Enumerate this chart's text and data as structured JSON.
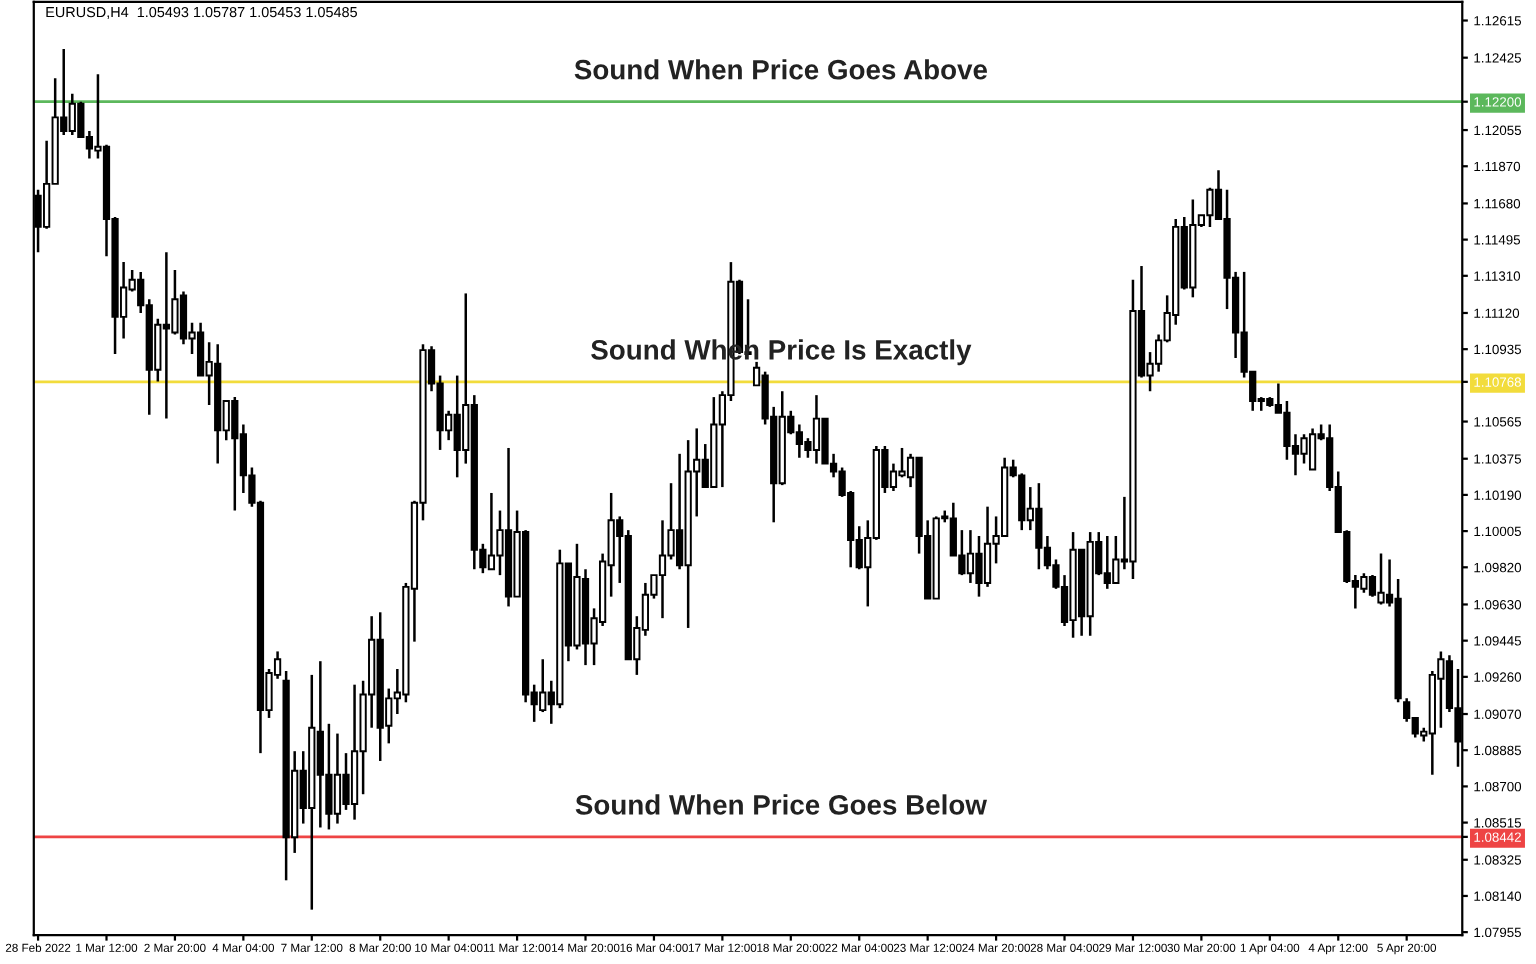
{
  "chart_data": {
    "type": "candlestick",
    "title": "EURUSD,H4  1.05493 1.05787 1.05453 1.05485",
    "categories": [
      "28 Feb 2022",
      null,
      null,
      null,
      null,
      null,
      null,
      null,
      "1 Mar 12:00",
      null,
      null,
      null,
      null,
      null,
      null,
      null,
      "2 Mar 20:00",
      null,
      null,
      null,
      null,
      null,
      null,
      null,
      "4 Mar 04:00",
      null,
      null,
      null,
      null,
      null,
      null,
      null,
      "7 Mar 12:00",
      null,
      null,
      null,
      null,
      null,
      null,
      null,
      "8 Mar 20:00",
      null,
      null,
      null,
      null,
      null,
      null,
      null,
      "10 Mar 04:00",
      null,
      null,
      null,
      null,
      null,
      null,
      null,
      "11 Mar 12:00",
      null,
      null,
      null,
      null,
      null,
      null,
      null,
      "14 Mar 20:00",
      null,
      null,
      null,
      null,
      null,
      null,
      null,
      "16 Mar 04:00",
      null,
      null,
      null,
      null,
      null,
      null,
      null,
      "17 Mar 12:00",
      null,
      null,
      null,
      null,
      null,
      null,
      null,
      "18 Mar 20:00",
      null,
      null,
      null,
      null,
      null,
      null,
      null,
      "22 Mar 04:00",
      null,
      null,
      null,
      null,
      null,
      null,
      null,
      "23 Mar 12:00",
      null,
      null,
      null,
      null,
      null,
      null,
      null,
      "24 Mar 20:00",
      null,
      null,
      null,
      null,
      null,
      null,
      null,
      "28 Mar 04:00",
      null,
      null,
      null,
      null,
      null,
      null,
      null,
      "29 Mar 12:00",
      null,
      null,
      null,
      null,
      null,
      null,
      null,
      "30 Mar 20:00",
      null,
      null,
      null,
      null,
      null,
      null,
      null,
      "1 Apr 04:00",
      null,
      null,
      null,
      null,
      null,
      null,
      null,
      "4 Apr 12:00",
      null,
      null,
      null,
      null,
      null,
      null,
      null,
      "5 Apr 20:00",
      null,
      null,
      null,
      null,
      null,
      null
    ],
    "ohlc": [
      [
        1.1172,
        1.1175,
        1.1143,
        1.1156
      ],
      [
        1.1156,
        1.12,
        1.1155,
        1.1178
      ],
      [
        1.1178,
        1.1232,
        1.1178,
        1.1212
      ],
      [
        1.1212,
        1.1247,
        1.1203,
        1.1205
      ],
      [
        1.1205,
        1.1224,
        1.1203,
        1.1219
      ],
      [
        1.1219,
        1.122,
        1.1202,
        1.1202
      ],
      [
        1.1202,
        1.1205,
        1.1191,
        1.1196
      ],
      [
        1.1195,
        1.1234,
        1.1191,
        1.1197
      ],
      [
        1.1197,
        1.1198,
        1.1141,
        1.116
      ],
      [
        1.116,
        1.1161,
        1.1091,
        1.111
      ],
      [
        1.111,
        1.1138,
        1.1099,
        1.1125
      ],
      [
        1.1124,
        1.1134,
        1.1123,
        1.1129
      ],
      [
        1.1129,
        1.1133,
        1.1112,
        1.1116
      ],
      [
        1.1116,
        1.1119,
        1.106,
        1.1083
      ],
      [
        1.1083,
        1.1109,
        1.1077,
        1.1106
      ],
      [
        1.1106,
        1.1143,
        1.1058,
        1.1104
      ],
      [
        1.1102,
        1.1134,
        1.1101,
        1.1119
      ],
      [
        1.1121,
        1.1123,
        1.1096,
        1.1099
      ],
      [
        1.1099,
        1.1107,
        1.1091,
        1.1102
      ],
      [
        1.1102,
        1.1107,
        1.108,
        1.108
      ],
      [
        1.108,
        1.1097,
        1.1065,
        1.1087
      ],
      [
        1.1086,
        1.1096,
        1.1035,
        1.1052
      ],
      [
        1.1052,
        1.1067,
        1.1047,
        1.1067
      ],
      [
        1.1067,
        1.1069,
        1.1011,
        1.1048
      ],
      [
        1.105,
        1.1055,
        1.102,
        1.1029
      ],
      [
        1.1029,
        1.1033,
        1.1013,
        1.1015
      ],
      [
        1.1015,
        1.1016,
        1.0887,
        1.0909
      ],
      [
        1.0909,
        1.093,
        1.0905,
        1.0928
      ],
      [
        1.0927,
        1.0939,
        1.0925,
        1.0935
      ],
      [
        1.0924,
        1.0929,
        1.0822,
        1.0844
      ],
      [
        1.0844,
        1.0888,
        1.0836,
        1.0878
      ],
      [
        1.0878,
        1.0888,
        1.0851,
        1.0859
      ],
      [
        1.0859,
        1.0927,
        1.0807,
        1.09
      ],
      [
        1.0898,
        1.0934,
        1.0849,
        1.0876
      ],
      [
        1.0876,
        1.0902,
        1.0848,
        1.0856
      ],
      [
        1.0856,
        1.0897,
        1.0851,
        1.0876
      ],
      [
        1.0876,
        1.0887,
        1.0858,
        1.0861
      ],
      [
        1.0861,
        1.0922,
        1.0853,
        1.0888
      ],
      [
        1.0888,
        1.0924,
        1.0866,
        1.0917
      ],
      [
        1.0917,
        1.0957,
        1.09,
        1.0945
      ],
      [
        1.0945,
        1.0959,
        1.0883,
        1.09
      ],
      [
        1.0901,
        1.092,
        1.0892,
        1.0915
      ],
      [
        1.0915,
        1.093,
        1.0907,
        1.0918
      ],
      [
        1.0917,
        1.0974,
        1.0913,
        1.0972
      ],
      [
        1.0971,
        1.1016,
        1.0944,
        1.1015
      ],
      [
        1.1015,
        1.1096,
        1.1006,
        1.1093
      ],
      [
        1.1093,
        1.1095,
        1.1072,
        1.1076
      ],
      [
        1.1076,
        1.108,
        1.1042,
        1.1052
      ],
      [
        1.1052,
        1.1062,
        1.1047,
        1.106
      ],
      [
        1.106,
        1.108,
        1.1028,
        1.1042
      ],
      [
        1.1042,
        1.1122,
        1.1035,
        1.1065
      ],
      [
        1.1065,
        1.107,
        1.0981,
        1.0991
      ],
      [
        1.0991,
        1.0994,
        1.0979,
        1.0982
      ],
      [
        1.0981,
        1.102,
        1.0981,
        1.0988
      ],
      [
        1.0988,
        1.1011,
        1.0978,
        1.1001
      ],
      [
        1.1001,
        1.1043,
        1.0962,
        1.0967
      ],
      [
        1.0967,
        1.1011,
        1.0967,
        1.1
      ],
      [
        1.1,
        1.1001,
        1.0913,
        1.0917
      ],
      [
        1.0918,
        1.0922,
        1.0903,
        1.0912
      ],
      [
        1.0909,
        1.0935,
        1.0908,
        1.0918
      ],
      [
        1.0918,
        1.0924,
        1.0902,
        1.0912
      ],
      [
        1.0912,
        1.0991,
        1.091,
        1.0984
      ],
      [
        1.0984,
        1.0984,
        1.0934,
        1.0942
      ],
      [
        1.0942,
        1.0994,
        1.094,
        1.0977
      ],
      [
        1.0976,
        1.0981,
        1.0932,
        1.0943
      ],
      [
        1.0943,
        1.0961,
        1.0932,
        1.0956
      ],
      [
        1.0954,
        1.0989,
        1.0952,
        1.0985
      ],
      [
        1.0983,
        1.102,
        1.0967,
        1.1006
      ],
      [
        1.1006,
        1.1008,
        1.0974,
        1.0998
      ],
      [
        1.0998,
        1.1001,
        1.0935,
        1.0935
      ],
      [
        1.0935,
        1.0957,
        1.0927,
        1.0951
      ],
      [
        1.095,
        1.0974,
        1.0947,
        1.0968
      ],
      [
        1.0968,
        1.0978,
        1.0966,
        1.0978
      ],
      [
        1.0978,
        1.1006,
        1.0956,
        1.0988
      ],
      [
        1.0988,
        1.1025,
        1.0986,
        1.1001
      ],
      [
        1.1001,
        1.104,
        1.0981,
        1.0983
      ],
      [
        1.0983,
        1.1047,
        1.0951,
        1.1031
      ],
      [
        1.1031,
        1.1053,
        1.1008,
        1.1037
      ],
      [
        1.1037,
        1.1045,
        1.1023,
        1.1023
      ],
      [
        1.1023,
        1.1069,
        1.1023,
        1.1055
      ],
      [
        1.1055,
        1.1072,
        1.1023,
        1.107
      ],
      [
        1.107,
        1.1138,
        1.1067,
        1.1128
      ],
      [
        1.1128,
        1.1129,
        1.1091,
        1.1092
      ],
      [
        1.1091,
        1.1119,
        1.1091,
        1.1092
      ],
      [
        1.1075,
        1.1087,
        1.1075,
        1.1084
      ],
      [
        1.108,
        1.1082,
        1.1055,
        1.1058
      ],
      [
        1.1059,
        1.1064,
        1.1005,
        1.1025
      ],
      [
        1.1025,
        1.1072,
        1.1024,
        1.1059
      ],
      [
        1.1059,
        1.1062,
        1.105,
        1.1051
      ],
      [
        1.1051,
        1.1055,
        1.1038,
        1.1045
      ],
      [
        1.1046,
        1.1048,
        1.1038,
        1.1042
      ],
      [
        1.1042,
        1.107,
        1.1035,
        1.1058
      ],
      [
        1.1058,
        1.1058,
        1.1035,
        1.1035
      ],
      [
        1.1035,
        1.104,
        1.1028,
        1.1031
      ],
      [
        1.1031,
        1.1033,
        1.1018,
        1.1019
      ],
      [
        1.102,
        1.1021,
        1.0982,
        1.0996
      ],
      [
        1.0996,
        1.1003,
        1.0981,
        1.0982
      ],
      [
        1.0982,
        1.1006,
        1.0962,
        1.0997
      ],
      [
        1.0997,
        1.1044,
        1.0996,
        1.1042
      ],
      [
        1.1042,
        1.1044,
        1.102,
        1.1023
      ],
      [
        1.1023,
        1.1035,
        1.1021,
        1.1031
      ],
      [
        1.1029,
        1.1043,
        1.1028,
        1.1031
      ],
      [
        1.1028,
        1.104,
        1.1023,
        1.1038
      ],
      [
        1.1038,
        1.1038,
        1.0989,
        1.0998
      ],
      [
        1.0998,
        1.1006,
        1.0966,
        1.0966
      ],
      [
        1.0966,
        1.1008,
        1.0966,
        1.1007
      ],
      [
        1.1008,
        1.1011,
        1.1005,
        1.1007
      ],
      [
        1.1007,
        1.1015,
        1.0988,
        1.0988
      ],
      [
        1.0988,
        1.1001,
        1.0978,
        1.0979
      ],
      [
        1.0979,
        1.1001,
        1.0974,
        1.0989
      ],
      [
        1.0989,
        1.0998,
        1.0967,
        1.0974
      ],
      [
        1.0974,
        1.1013,
        1.0972,
        1.0994
      ],
      [
        1.0994,
        1.1008,
        1.0984,
        1.0998
      ],
      [
        1.0998,
        1.1038,
        1.0998,
        1.1033
      ],
      [
        1.1033,
        1.1037,
        1.1028,
        1.1029
      ],
      [
        1.1029,
        1.103,
        1.1001,
        1.1006
      ],
      [
        1.1006,
        1.1023,
        1.1001,
        1.1012
      ],
      [
        1.1012,
        1.1025,
        1.0981,
        1.0992
      ],
      [
        1.0992,
        1.0998,
        1.0981,
        1.0983
      ],
      [
        1.0983,
        1.0986,
        1.0971,
        1.0972
      ],
      [
        1.0972,
        1.0978,
        1.0952,
        1.0954
      ],
      [
        1.0955,
        1.1,
        1.0946,
        1.0991
      ],
      [
        1.0991,
        1.0991,
        1.0947,
        1.0957
      ],
      [
        1.0957,
        1.1,
        1.0947,
        1.0995
      ],
      [
        1.0995,
        1.1,
        1.0978,
        1.0979
      ],
      [
        1.0979,
        1.0998,
        1.0971,
        1.0974
      ],
      [
        1.0974,
        1.0998,
        1.0974,
        1.0986
      ],
      [
        1.0985,
        1.1018,
        1.0981,
        1.0986
      ],
      [
        1.0985,
        1.1129,
        1.0976,
        1.1113
      ],
      [
        1.1113,
        1.1136,
        1.1079,
        1.108
      ],
      [
        1.108,
        1.1092,
        1.1072,
        1.1086
      ],
      [
        1.1086,
        1.1101,
        1.1082,
        1.1098
      ],
      [
        1.1098,
        1.1121,
        1.1097,
        1.1112
      ],
      [
        1.1111,
        1.116,
        1.1106,
        1.1156
      ],
      [
        1.1156,
        1.1161,
        1.1124,
        1.1125
      ],
      [
        1.1125,
        1.117,
        1.112,
        1.1157
      ],
      [
        1.1157,
        1.1162,
        1.1156,
        1.1162
      ],
      [
        1.1162,
        1.1176,
        1.1156,
        1.1175
      ],
      [
        1.1175,
        1.1185,
        1.116,
        1.116
      ],
      [
        1.116,
        1.1175,
        1.1114,
        1.113
      ],
      [
        1.113,
        1.1133,
        1.1089,
        1.1102
      ],
      [
        1.1102,
        1.1133,
        1.1079,
        1.1082
      ],
      [
        1.1082,
        1.1082,
        1.1062,
        1.1067
      ],
      [
        1.1068,
        1.1069,
        1.1062,
        1.1067
      ],
      [
        1.1068,
        1.1069,
        1.1064,
        1.1065
      ],
      [
        1.1065,
        1.1076,
        1.1061,
        1.1061
      ],
      [
        1.1061,
        1.1067,
        1.1037,
        1.1044
      ],
      [
        1.1044,
        1.105,
        1.1029,
        1.104
      ],
      [
        1.104,
        1.105,
        1.1035,
        1.1048
      ],
      [
        1.1032,
        1.1053,
        1.1032,
        1.105
      ],
      [
        1.105,
        1.1055,
        1.1047,
        1.1048
      ],
      [
        1.1048,
        1.1055,
        1.1021,
        1.1023
      ],
      [
        1.1023,
        1.1031,
        1.1,
        1.1
      ],
      [
        1.1,
        1.1001,
        1.0974,
        1.0975
      ],
      [
        1.0975,
        1.0978,
        1.0961,
        1.0972
      ],
      [
        1.0971,
        1.0979,
        1.0969,
        1.0977
      ],
      [
        1.0977,
        1.0978,
        1.0967,
        1.0968
      ],
      [
        1.0964,
        1.0989,
        1.0963,
        1.0969
      ],
      [
        1.0968,
        1.0986,
        1.0962,
        1.0964
      ],
      [
        1.0966,
        1.0976,
        1.0913,
        1.0915
      ],
      [
        1.0913,
        1.0915,
        1.0903,
        1.0905
      ],
      [
        1.0905,
        1.0905,
        1.0895,
        1.0897
      ],
      [
        1.0896,
        1.09,
        1.0893,
        1.0898
      ],
      [
        1.0897,
        1.0929,
        1.0876,
        1.0927
      ],
      [
        1.0925,
        1.0939,
        1.09,
        1.0935
      ],
      [
        1.0934,
        1.0937,
        1.0908,
        1.091
      ],
      [
        1.091,
        1.093,
        1.088,
        1.0893
      ]
    ],
    "ylim": [
      1.0794,
      1.1271
    ],
    "yticks": [
      1.12615,
      1.12425,
      {
        "value": 1.122,
        "label": "1.12200"
      },
      1.12055,
      {
        "value": 1.1187,
        "label": "1.11870"
      },
      {
        "value": 1.1168,
        "label": "1.11680"
      },
      1.11495,
      {
        "value": 1.1131,
        "label": "1.11310"
      },
      {
        "value": 1.1112,
        "label": "1.11120"
      },
      1.10935,
      {
        "value": 1.10768,
        "label": "1.10768"
      },
      1.10565,
      1.10375,
      {
        "value": 1.1019,
        "label": "1.10190"
      },
      1.10005,
      {
        "value": 1.0982,
        "label": "1.09820"
      },
      {
        "value": 1.0963,
        "label": "1.09630"
      },
      1.09445,
      {
        "value": 1.0926,
        "label": "1.09260"
      },
      {
        "value": 1.0907,
        "label": "1.09070"
      },
      1.08885,
      {
        "value": 1.087,
        "label": "1.08700"
      },
      1.08515,
      1.08442,
      1.08325,
      {
        "value": 1.0814,
        "label": "1.08140"
      },
      1.07955
    ],
    "ref_lines": [
      {
        "axis": "y",
        "value": 1.122,
        "label": "Sound When Price Goes Above",
        "color": "#5cb85c"
      },
      {
        "axis": "y",
        "value": 1.10768,
        "label": "Sound When Price Is Exactly",
        "color": "#f2dc3c"
      },
      {
        "axis": "y",
        "value": 1.08442,
        "label": "Sound When Price Goes Below",
        "color": "#ee4444"
      }
    ],
    "grid": false,
    "legend": false
  }
}
